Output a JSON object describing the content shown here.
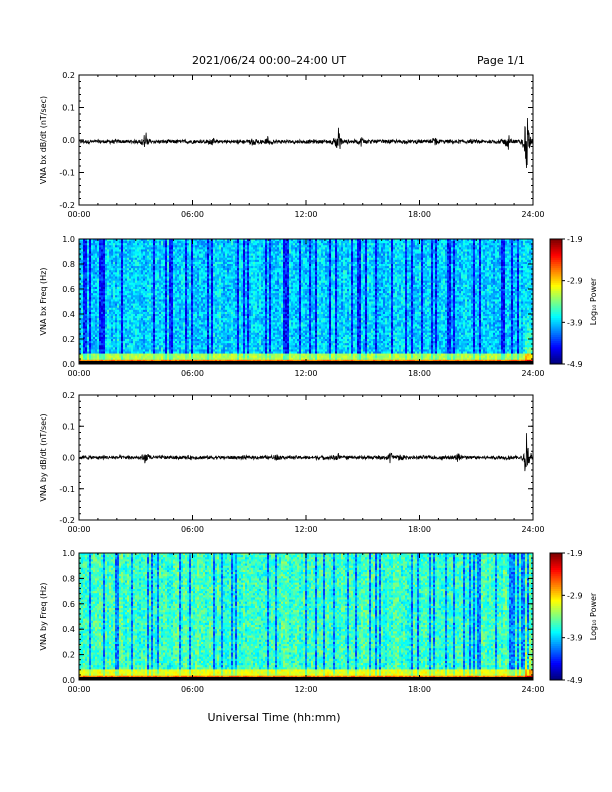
{
  "header": {
    "title": "2021/06/24  00:00–24:00 UT",
    "page": "Page 1/1"
  },
  "xlabel": "Universal Time (hh:mm)",
  "chart_data": [
    {
      "type": "line",
      "ylabel": "VNA bx dB/dt (nT/sec)",
      "ylim": [
        -0.2,
        0.2
      ],
      "yticks": [
        "0.2",
        "0.1",
        "0.0",
        "-0.1",
        "-0.2"
      ],
      "xlim": [
        "00:00",
        "24:00"
      ],
      "xticks": [
        "00:00",
        "06:00",
        "12:00",
        "18:00",
        "24:00"
      ],
      "baseline": -0.005,
      "noise_amplitude": 0.006,
      "bursts": [
        {
          "t": "03:30",
          "amp": 0.03
        },
        {
          "t": "07:00",
          "amp": 0.012
        },
        {
          "t": "09:10",
          "amp": 0.013
        },
        {
          "t": "10:00",
          "amp": 0.012
        },
        {
          "t": "13:40",
          "amp": 0.05
        },
        {
          "t": "15:00",
          "amp": 0.015
        },
        {
          "t": "18:50",
          "amp": 0.015
        },
        {
          "t": "22:40",
          "amp": 0.03
        },
        {
          "t": "23:40",
          "amp": 0.12
        }
      ]
    },
    {
      "type": "heatmap",
      "ylabel": "VNA bx Freq (Hz)",
      "ylim": [
        0.0,
        1.0
      ],
      "yticks": [
        "1.0",
        "0.8",
        "0.6",
        "0.4",
        "0.2",
        "0.0"
      ],
      "xticks": [
        "00:00",
        "06:00",
        "12:00",
        "18:00",
        "24:00"
      ],
      "colorbar": {
        "label": "Log₁₀ Power",
        "range": [
          -4.9,
          -1.9
        ],
        "ticks": [
          "-1.9",
          "-2.9",
          "-3.9",
          "-4.9"
        ]
      },
      "typical_log_power": -3.9,
      "low_freq_log_power": -2.6
    },
    {
      "type": "line",
      "ylabel": "VNA by dB/dt (nT/sec)",
      "ylim": [
        -0.2,
        0.2
      ],
      "yticks": [
        "0.2",
        "0.1",
        "0.0",
        "-0.1",
        "-0.2"
      ],
      "xlim": [
        "00:00",
        "24:00"
      ],
      "xticks": [
        "00:00",
        "06:00",
        "12:00",
        "18:00",
        "24:00"
      ],
      "baseline": 0.0,
      "noise_amplitude": 0.006,
      "bursts": [
        {
          "t": "03:30",
          "amp": 0.02
        },
        {
          "t": "10:30",
          "amp": 0.012
        },
        {
          "t": "13:40",
          "amp": 0.012
        },
        {
          "t": "16:30",
          "amp": 0.018
        },
        {
          "t": "17:00",
          "amp": 0.02
        },
        {
          "t": "20:00",
          "amp": 0.015
        },
        {
          "t": "23:40",
          "amp": 0.08
        }
      ]
    },
    {
      "type": "heatmap",
      "ylabel": "VNA by Freq (Hz)",
      "ylim": [
        0.0,
        1.0
      ],
      "yticks": [
        "1.0",
        "0.8",
        "0.6",
        "0.4",
        "0.2",
        "0.0"
      ],
      "xticks": [
        "00:00",
        "06:00",
        "12:00",
        "18:00",
        "24:00"
      ],
      "colorbar": {
        "label": "Log₁₀ Power",
        "range": [
          -4.9,
          -1.9
        ],
        "ticks": [
          "-1.9",
          "-2.9",
          "-3.9",
          "-4.9"
        ]
      },
      "typical_log_power": -3.6,
      "low_freq_log_power": -2.6
    }
  ]
}
